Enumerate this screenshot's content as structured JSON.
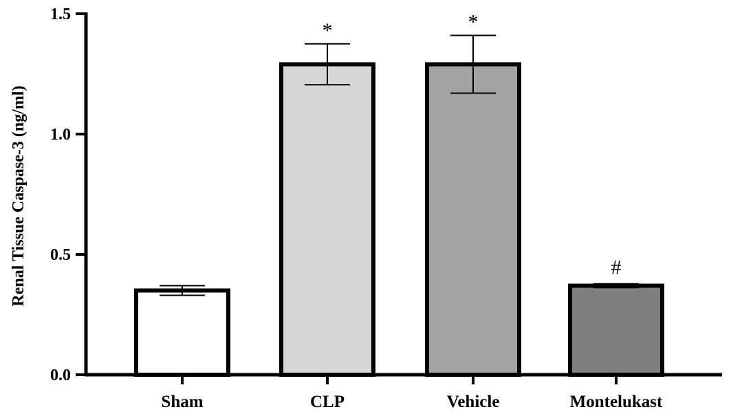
{
  "chart_data": {
    "type": "bar",
    "title": "",
    "xlabel": "",
    "ylabel": "Renal Tissue Caspase-3 (ng/ml)",
    "categories": [
      "Sham",
      "CLP",
      "Vehicle",
      "Montelukast"
    ],
    "values": [
      0.35,
      1.29,
      1.29,
      0.37
    ],
    "errors": [
      0.02,
      0.085,
      0.12,
      0.008
    ],
    "annotations": [
      "",
      "*",
      "*",
      "#"
    ],
    "colors": [
      "#ffffff",
      "#d6d6d6",
      "#a3a3a3",
      "#7f7f7f"
    ],
    "ylim": [
      0,
      1.5
    ],
    "yticks": [
      0.0,
      0.5,
      1.0,
      1.5
    ],
    "ytick_labels": [
      "0.0",
      "0.5",
      "1.0",
      "1.5"
    ],
    "grid": false,
    "legend": "none"
  }
}
